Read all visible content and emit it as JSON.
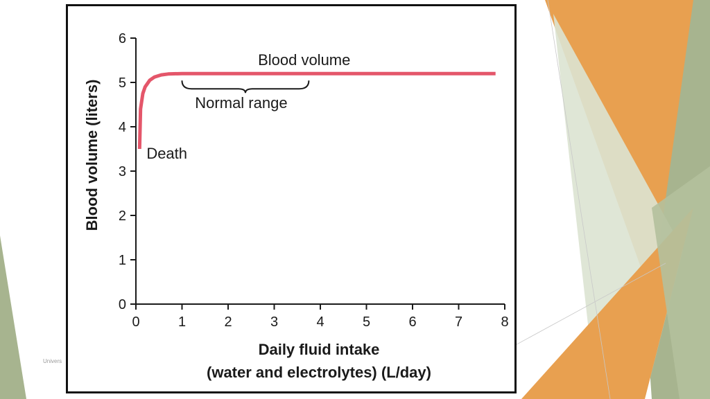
{
  "slide": {
    "footer_text": "Univers",
    "colors": {
      "orange": "#e8a050",
      "orange_dark": "#e39a3c",
      "sage": "#a7b48f",
      "sage_light": "#cfd9c4",
      "sage_pale": "#dbe3d2"
    }
  },
  "chart_data": {
    "type": "line",
    "title": "",
    "xlabel_line1": "Daily fluid intake",
    "xlabel_line2": "(water and electrolytes) (L/day)",
    "ylabel": "Blood volume (liters)",
    "xlim": [
      0,
      8
    ],
    "ylim": [
      0,
      6
    ],
    "x_ticks": [
      "0",
      "1",
      "2",
      "3",
      "4",
      "5",
      "6",
      "7",
      "8"
    ],
    "y_ticks": [
      "0",
      "1",
      "2",
      "3",
      "4",
      "5",
      "6"
    ],
    "grid": false,
    "series": [
      {
        "name": "Blood volume",
        "color": "#e4566a",
        "x": [
          0.08,
          0.1,
          0.15,
          0.2,
          0.3,
          0.4,
          0.55,
          0.7,
          1.0,
          2.0,
          4.0,
          6.0,
          7.8
        ],
        "y": [
          3.5,
          4.4,
          4.75,
          4.9,
          5.05,
          5.12,
          5.17,
          5.19,
          5.2,
          5.2,
          5.2,
          5.2,
          5.2
        ]
      }
    ],
    "annotations": {
      "series_label": "Blood volume",
      "normal_range_label": "Normal range",
      "normal_range": [
        1.0,
        3.75
      ],
      "death_label": "Death"
    }
  }
}
